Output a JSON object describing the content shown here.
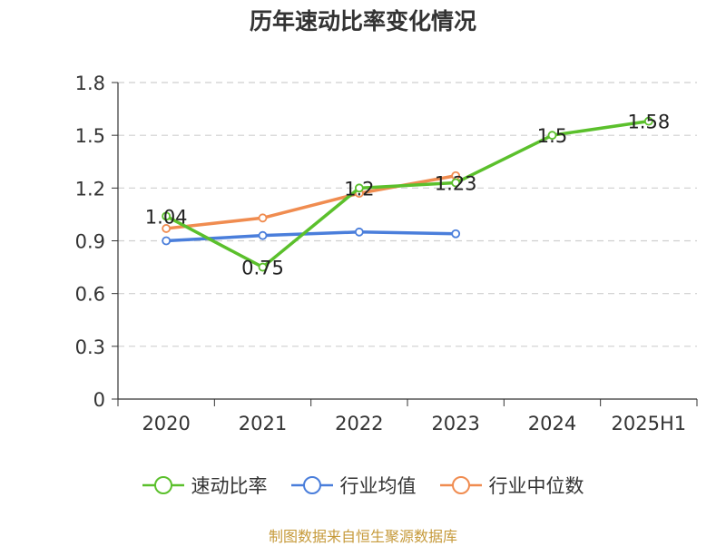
{
  "chart_data": {
    "type": "line",
    "title": "历年速动比率变化情况",
    "categories": [
      "2020",
      "2021",
      "2022",
      "2023",
      "2024",
      "2025H1"
    ],
    "ylim": [
      0,
      1.8
    ],
    "yticks": [
      "0",
      "0.3",
      "0.6",
      "0.9",
      "1.2",
      "1.5",
      "1.8"
    ],
    "grid": true,
    "legend_position": "bottom",
    "series": [
      {
        "name": "速动比率",
        "color": "#5bc02c",
        "values": [
          1.04,
          0.75,
          1.2,
          1.23,
          1.5,
          1.58
        ],
        "labels": [
          "1.04",
          "0.75",
          "1.2",
          "1.23",
          "1.5",
          "1.58"
        ]
      },
      {
        "name": "行业均值",
        "color": "#4a7edb",
        "values": [
          0.9,
          0.93,
          0.95,
          0.94,
          null,
          null
        ]
      },
      {
        "name": "行业中位数",
        "color": "#f08c50",
        "values": [
          0.97,
          1.03,
          1.17,
          1.27,
          null,
          null
        ]
      }
    ]
  },
  "source_note": "制图数据来自恒生聚源数据库"
}
